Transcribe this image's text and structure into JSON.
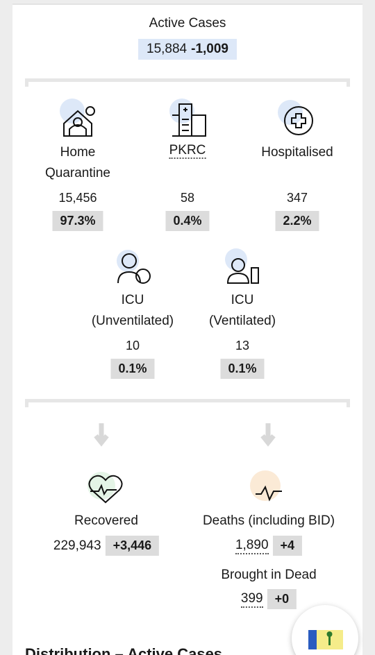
{
  "active": {
    "title": "Active Cases",
    "value": "15,884",
    "change": "-1,009"
  },
  "groups": [
    {
      "label": "Home Quarantine",
      "count": "15,456",
      "percent": "97.3%"
    },
    {
      "label": "PKRC",
      "count": "58",
      "percent": "0.4%"
    },
    {
      "label": "Hospitalised",
      "count": "347",
      "percent": "2.2%"
    },
    {
      "label": "ICU (Unventilated)",
      "count": "10",
      "percent": "0.1%"
    },
    {
      "label": "ICU (Ventilated)",
      "count": "13",
      "percent": "0.1%"
    }
  ],
  "recovered": {
    "label": "Recovered",
    "count": "229,943",
    "change": "+3,446"
  },
  "deaths": {
    "label": "Deaths (including BID)",
    "count": "1,890",
    "change": "+4"
  },
  "bid": {
    "label": "Brought in Dead",
    "count": "399",
    "change": "+0"
  },
  "section": {
    "title": "Distribution – Active Cases"
  }
}
